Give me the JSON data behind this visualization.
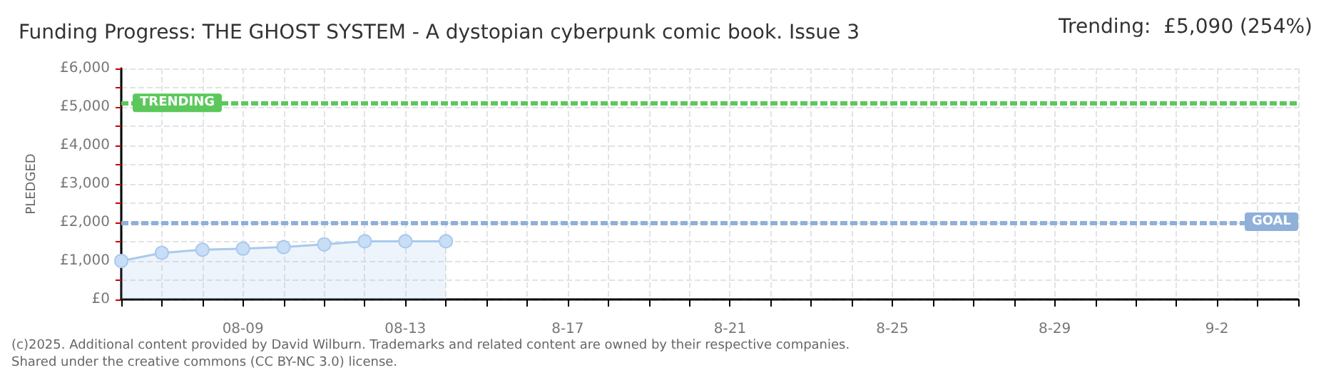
{
  "chart_data": {
    "type": "area",
    "title": "Funding Progress: THE GHOST SYSTEM - A dystopian cyberpunk comic book. Issue 3",
    "ylabel": "PLEDGED",
    "annotations": [
      "Trending:  £5,090 (254%)",
      "(c)2025. Additional content provided by David Wilburn. Trademarks and related content are owned by their respective companies.",
      "Shared under the creative commons (CC BY-NC 3.0) license."
    ],
    "x": [
      "--08-06",
      "--08-07",
      "--08-08",
      "--08-09",
      "--08-10",
      "--08-11",
      "--08-12",
      "--08-13",
      "--08-14"
    ],
    "series": [
      {
        "color": "#a9c9ee",
        "values": [
          1000,
          1210,
          1290,
          1320,
          1360,
          1430,
          1510,
          1510,
          1510
        ]
      }
    ],
    "xlim": [
      "--08-06",
      "--09-04"
    ],
    "xticks": [
      {
        "value": "--08-06",
        "label": null
      },
      {
        "value": "--08-07",
        "label": null
      },
      {
        "value": "--08-08",
        "label": null
      },
      {
        "value": "--08-09",
        "label": "08-09"
      },
      {
        "value": "--08-10",
        "label": null
      },
      {
        "value": "--08-11",
        "label": null
      },
      {
        "value": "--08-12",
        "label": null
      },
      {
        "value": "--08-13",
        "label": "08-13"
      },
      {
        "value": "--08-14",
        "label": null
      },
      {
        "value": "--08-15",
        "label": null
      },
      {
        "value": "--08-16",
        "label": null
      },
      {
        "value": "--08-17",
        "label": "8-17"
      },
      {
        "value": "--08-18",
        "label": null
      },
      {
        "value": "--08-19",
        "label": null
      },
      {
        "value": "--08-20",
        "label": null
      },
      {
        "value": "--08-21",
        "label": "8-21"
      },
      {
        "value": "--08-22",
        "label": null
      },
      {
        "value": "--08-23",
        "label": null
      },
      {
        "value": "--08-24",
        "label": null
      },
      {
        "value": "--08-25",
        "label": "8-25"
      },
      {
        "value": "--08-26",
        "label": null
      },
      {
        "value": "--08-27",
        "label": null
      },
      {
        "value": "--08-28",
        "label": null
      },
      {
        "value": "--08-29",
        "label": "8-29"
      },
      {
        "value": "--08-30",
        "label": null
      },
      {
        "value": "--08-31",
        "label": null
      },
      {
        "value": "--09-01",
        "label": null
      },
      {
        "value": "--09-02",
        "label": "9-2"
      },
      {
        "value": "--09-03",
        "label": null
      },
      {
        "value": "--09-04",
        "label": null
      }
    ],
    "ylim": [
      0,
      6000
    ],
    "yticks": [
      {
        "value": 0,
        "label": "£0"
      },
      {
        "value": 500,
        "label": null
      },
      {
        "value": 1000,
        "label": "£1,000"
      },
      {
        "value": 1500,
        "label": null
      },
      {
        "value": 2000,
        "label": "£2,000"
      },
      {
        "value": 2500,
        "label": null
      },
      {
        "value": 3000,
        "label": "£3,000"
      },
      {
        "value": 3500,
        "label": null
      },
      {
        "value": 4000,
        "label": "£4,000"
      },
      {
        "value": 4500,
        "label": null
      },
      {
        "value": 5000,
        "label": "£5,000"
      },
      {
        "value": 5500,
        "label": null
      },
      {
        "value": 6000,
        "label": "£6,000"
      }
    ],
    "ref_lines": [
      {
        "axis": "y",
        "value": 5090,
        "label": "TRENDING",
        "color": "#5cc85c"
      },
      {
        "axis": "y",
        "value": 2000,
        "label": "GOAL",
        "color": "#8fb0d8"
      }
    ],
    "grid": true,
    "marker": "circle",
    "line_style": "solid"
  }
}
